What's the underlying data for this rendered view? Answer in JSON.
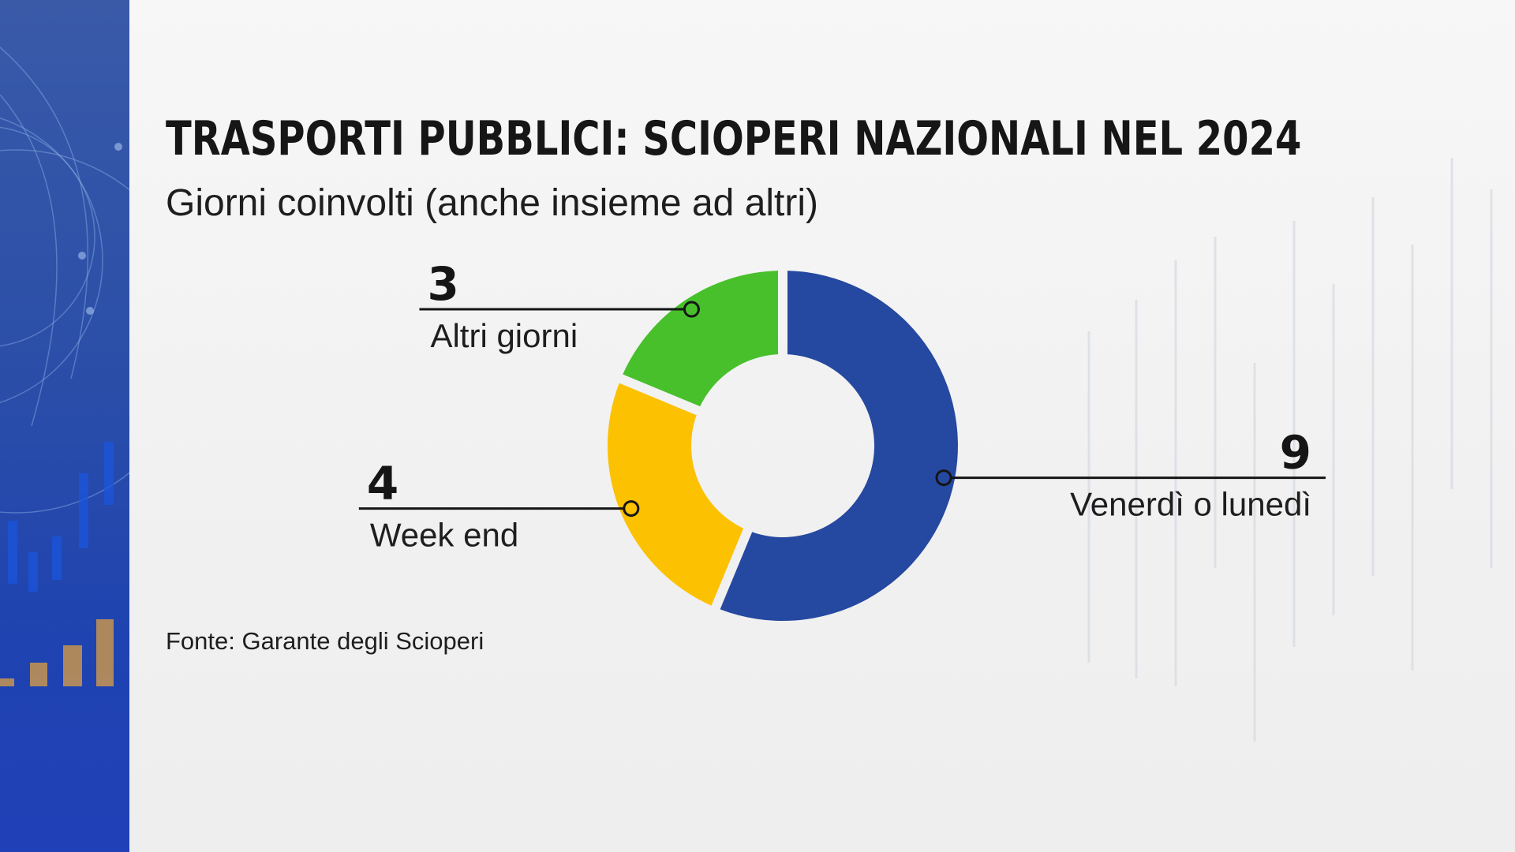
{
  "title": "TRASPORTI PUBBLICI: SCIOPERI NAZIONALI NEL 2024",
  "subtitle": "Giorni coinvolti (anche insieme ad altri)",
  "source": "Fonte: Garante degli Scioperi",
  "colors": {
    "venerdi_lunedi": "#2548a0",
    "week_end": "#fcc100",
    "altri_giorni": "#48c02c",
    "left_band": "#2a4ea8"
  },
  "chart_data": {
    "type": "pie",
    "variant": "donut",
    "title": "TRASPORTI PUBBLICI: SCIOPERI NAZIONALI NEL 2024",
    "subtitle": "Giorni coinvolti (anche insieme ad altri)",
    "start": "12 o'clock, clockwise",
    "slices": [
      {
        "label": "Venerdì o lunedì",
        "value": 9,
        "color": "#2548a0",
        "label_side": "right"
      },
      {
        "label": "Week end",
        "value": 4,
        "color": "#fcc100",
        "label_side": "left"
      },
      {
        "label": "Altri giorni",
        "value": 3,
        "color": "#48c02c",
        "label_side": "left"
      }
    ]
  }
}
